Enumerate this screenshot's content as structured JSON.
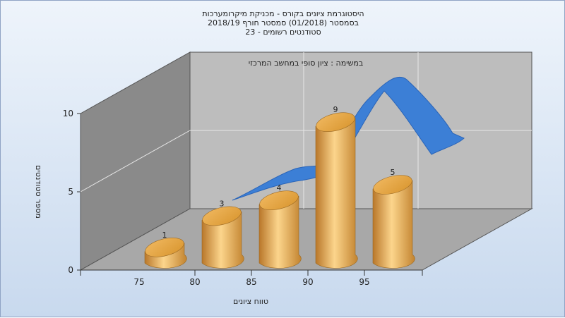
{
  "titles": [
    "היסטוגרמת ציונים בקורס - מכניקת מיקרומערכות",
    "בסמסטר  (01/2018)  סמסטר חורף 2018/19",
    "סטודנטים רשומים - 23"
  ],
  "colors": {
    "bar": "#e3a545",
    "bar_light": "#fcd58c",
    "bar_dark": "#b9772a",
    "ribbon": "#3c7fd6",
    "ribbon_dark": "#2b65b8",
    "back_wall": "#bdbdbd",
    "side_wall": "#8a8a8a",
    "floor": "#a8a8a8"
  },
  "chart_data": {
    "type": "bar",
    "title": "היסטוגרמת ציונים בקורס - מכניקת מיקרומערכות",
    "subtitle": "במשימה : ציון סופי במחשב המרכזי",
    "xlabel": "טווח ציונים",
    "ylabel": "מספר סטודנטים",
    "x_ticks": [
      "75",
      "80",
      "85",
      "90",
      "95"
    ],
    "y_ticks": [
      "0",
      "5",
      "10"
    ],
    "ylim": [
      0,
      10
    ],
    "grid": true,
    "bars": [
      {
        "label": "1",
        "value": 1
      },
      {
        "label": "3",
        "value": 3
      },
      {
        "label": "4",
        "value": 4
      },
      {
        "label": "9",
        "value": 9
      },
      {
        "label": "5",
        "value": 5
      }
    ]
  }
}
